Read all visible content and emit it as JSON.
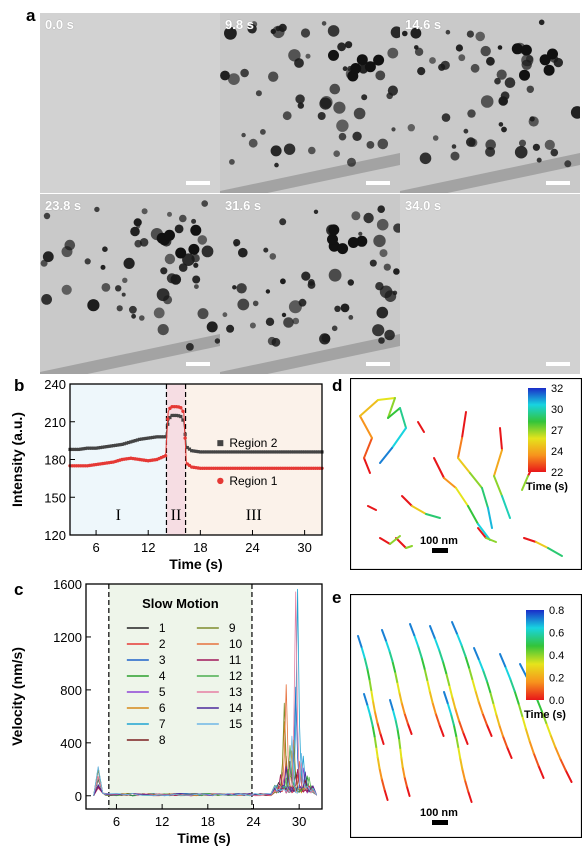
{
  "panel_labels": {
    "a": "a",
    "b": "b",
    "c": "c",
    "d": "d",
    "e": "e"
  },
  "panel_a": {
    "frames": [
      {
        "time": "0.0 s",
        "empty": true
      },
      {
        "time": "9.8 s",
        "empty": false,
        "seed": 11
      },
      {
        "time": "14.6 s",
        "empty": false,
        "seed": 23
      },
      {
        "time": "23.8 s",
        "empty": false,
        "seed": 37
      },
      {
        "time": "31.6 s",
        "empty": false,
        "seed": 51
      },
      {
        "time": "34.0 s",
        "empty": true
      }
    ]
  },
  "chart_data": [
    {
      "id": "b",
      "type": "line",
      "xlabel": "Time (s)",
      "ylabel": "Intensity (a.u.)",
      "xlim": [
        3,
        32
      ],
      "ylim": [
        120,
        240
      ],
      "xticks": [
        6,
        12,
        18,
        24,
        30
      ],
      "yticks": [
        120,
        150,
        180,
        210,
        240
      ],
      "regions": [
        {
          "label": "I",
          "from": 3,
          "to": 14.1,
          "color": "#eef7fb"
        },
        {
          "label": "II",
          "from": 14.1,
          "to": 16.3,
          "color": "#f6dde3"
        },
        {
          "label": "III",
          "from": 16.3,
          "to": 32,
          "color": "#fbf2ea"
        }
      ],
      "series": [
        {
          "name": "Region 2",
          "color": "#444444",
          "marker": "square",
          "x": [
            3,
            4,
            5,
            6,
            7,
            8,
            9,
            10,
            11,
            12,
            13,
            14,
            14.3,
            14.6,
            15,
            15.4,
            15.8,
            16.1,
            16.4,
            17,
            18,
            20,
            22,
            24,
            26,
            28,
            30,
            32
          ],
          "y": [
            188,
            188,
            189,
            189,
            190,
            191,
            192,
            194,
            196,
            197,
            198,
            198,
            210,
            215,
            215,
            215,
            214,
            210,
            190,
            187,
            186,
            186,
            186,
            186,
            186,
            186,
            186,
            186
          ]
        },
        {
          "name": "Region 1",
          "color": "#e53935",
          "marker": "circle",
          "x": [
            3,
            4,
            5,
            6,
            7,
            8,
            9,
            10,
            11,
            12,
            13,
            14,
            14.3,
            14.6,
            15,
            15.4,
            15.8,
            16.1,
            16.4,
            17,
            18,
            20,
            22,
            24,
            26,
            28,
            30,
            32
          ],
          "y": [
            175,
            175,
            175,
            176,
            177,
            178,
            180,
            181,
            180,
            179,
            180,
            183,
            218,
            222,
            222,
            222,
            221,
            217,
            177,
            174,
            173,
            173,
            173,
            173,
            173,
            173,
            173,
            173
          ]
        }
      ]
    },
    {
      "id": "c",
      "type": "line",
      "xlabel": "Time (s)",
      "ylabel": "Velocity (nm/s)",
      "xlim": [
        2,
        33
      ],
      "ylim": [
        -100,
        1600
      ],
      "xticks": [
        6,
        12,
        18,
        24,
        30
      ],
      "yticks": [
        0,
        400,
        800,
        1200,
        1600
      ],
      "region": {
        "label": "Slow Motion",
        "from": 5,
        "to": 23.8
      },
      "series": [
        {
          "name": "1",
          "color": "#222222",
          "peaks": [
            [
              27.2,
              100
            ],
            [
              29.5,
              180
            ]
          ]
        },
        {
          "name": "2",
          "color": "#e53935",
          "peaks": [
            [
              28.3,
              300
            ],
            [
              29.8,
              160
            ]
          ]
        },
        {
          "name": "3",
          "color": "#1e63c9",
          "peaks": [
            [
              29.5,
              820
            ],
            [
              30.2,
              220
            ]
          ]
        },
        {
          "name": "4",
          "color": "#2ca02c",
          "peaks": [
            [
              28.6,
              200
            ],
            [
              31,
              150
            ]
          ]
        },
        {
          "name": "5",
          "color": "#8e44d6",
          "peaks": [
            [
              27.9,
              180
            ],
            [
              30.5,
              210
            ]
          ]
        },
        {
          "name": "6",
          "color": "#d68a1a",
          "peaks": [
            [
              28.0,
              560
            ],
            [
              29.0,
              340
            ]
          ]
        },
        {
          "name": "7",
          "color": "#1fa3d1",
          "peaks": [
            [
              29.9,
              1560
            ],
            [
              30.6,
              300
            ]
          ]
        },
        {
          "name": "8",
          "color": "#7b1f1f",
          "peaks": [
            [
              28.9,
              260
            ],
            [
              30.8,
              120
            ]
          ]
        },
        {
          "name": "9",
          "color": "#7f8c2d",
          "peaks": [
            [
              28.1,
              700
            ],
            [
              29.2,
              420
            ]
          ]
        },
        {
          "name": "10",
          "color": "#e6713d",
          "peaks": [
            [
              28.4,
              840
            ],
            [
              30.0,
              260
            ]
          ]
        },
        {
          "name": "11",
          "color": "#a0185a",
          "peaks": [
            [
              27.6,
              160
            ],
            [
              29.7,
              200
            ]
          ]
        },
        {
          "name": "12",
          "color": "#4caf50",
          "peaks": [
            [
              28.7,
              380
            ],
            [
              31.2,
              140
            ]
          ]
        },
        {
          "name": "13",
          "color": "#e57fa3",
          "peaks": [
            [
              29.6,
              1540
            ],
            [
              30.3,
              250
            ]
          ]
        },
        {
          "name": "14",
          "color": "#4b2a9b",
          "peaks": [
            [
              28.2,
              220
            ],
            [
              30.9,
              180
            ]
          ]
        },
        {
          "name": "15",
          "color": "#6fb6e6",
          "peaks": [
            [
              29.1,
              450
            ],
            [
              30.4,
              320
            ]
          ]
        }
      ]
    },
    {
      "id": "d",
      "type": "line",
      "colorbar": {
        "ticks": [
          "32",
          "30",
          "27",
          "24",
          "22"
        ],
        "label": "Time (s)"
      },
      "scalebar": "100 nm"
    },
    {
      "id": "e",
      "type": "line",
      "colorbar": {
        "ticks": [
          "0.8",
          "0.6",
          "0.4",
          "0.2",
          "0.0"
        ],
        "label": "Time (s)"
      },
      "scalebar": "100 nm"
    }
  ]
}
